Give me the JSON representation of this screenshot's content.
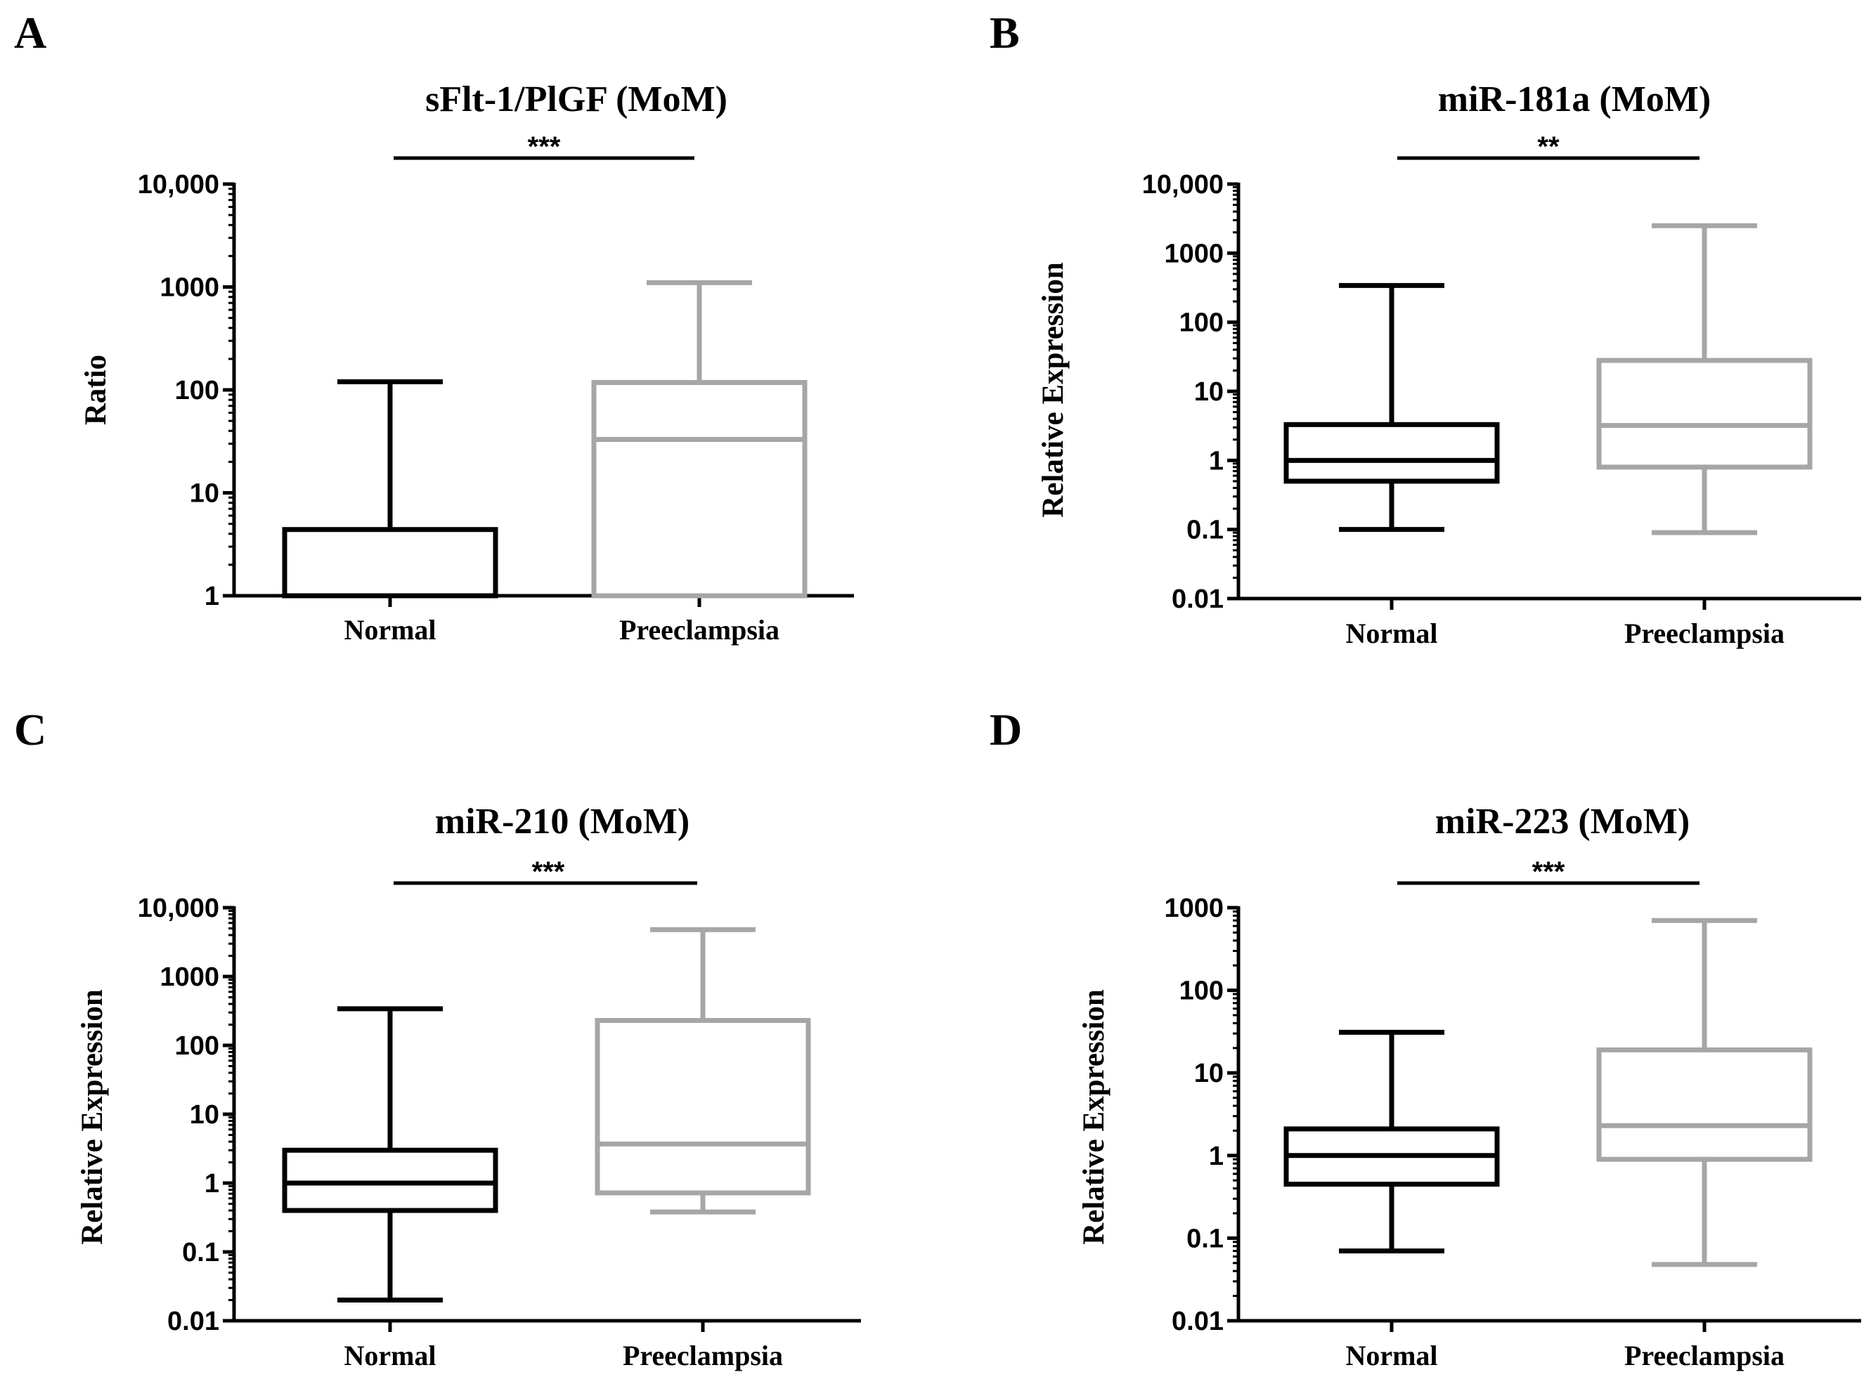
{
  "figure": {
    "panel_labels": [
      "A",
      "B",
      "C",
      "D"
    ]
  },
  "chart_data": [
    {
      "type": "boxplot",
      "panel": "A",
      "title": "sFlt-1/PlGF (MoM)",
      "ylabel": "Ratio",
      "xlabel": "",
      "yscale": "log",
      "ylim": [
        1,
        10000
      ],
      "yticks": [
        1,
        10,
        100,
        1000,
        10000
      ],
      "yticklabels": [
        "1",
        "10",
        "100",
        "1000",
        "10,000"
      ],
      "categories": [
        "Normal",
        "Preeclampsia"
      ],
      "significance": "***",
      "series": [
        {
          "name": "Normal",
          "color": "#000000",
          "min": 1,
          "q1": 1,
          "median": 1,
          "q3": 4.4,
          "max": 120
        },
        {
          "name": "Preeclampsia",
          "color": "#a6a6a6",
          "min": 1,
          "q1": 1,
          "median": 33,
          "q3": 118,
          "max": 1100
        }
      ]
    },
    {
      "type": "boxplot",
      "panel": "B",
      "title": "miR-181a (MoM)",
      "ylabel": "Relative Expression",
      "xlabel": "",
      "yscale": "log",
      "ylim": [
        0.01,
        10000
      ],
      "yticks": [
        0.01,
        0.1,
        1,
        10,
        100,
        1000,
        10000
      ],
      "yticklabels": [
        "0.01",
        "0.1",
        "1",
        "10",
        "100",
        "1000",
        "10,000"
      ],
      "categories": [
        "Normal",
        "Preeclampsia"
      ],
      "significance": "**",
      "series": [
        {
          "name": "Normal",
          "color": "#000000",
          "min": 0.1,
          "q1": 0.5,
          "median": 1.0,
          "q3": 3.3,
          "max": 340
        },
        {
          "name": "Preeclampsia",
          "color": "#a6a6a6",
          "min": 0.09,
          "q1": 0.8,
          "median": 3.2,
          "q3": 28,
          "max": 2500
        }
      ]
    },
    {
      "type": "boxplot",
      "panel": "C",
      "title": "miR-210 (MoM)",
      "ylabel": "Relative Expression",
      "xlabel": "",
      "yscale": "log",
      "ylim": [
        0.01,
        10000
      ],
      "yticks": [
        0.01,
        0.1,
        1,
        10,
        100,
        1000,
        10000
      ],
      "yticklabels": [
        "0.01",
        "0.1",
        "1",
        "10",
        "100",
        "1000",
        "10,000"
      ],
      "categories": [
        "Normal",
        "Preeclampsia"
      ],
      "significance": "***",
      "series": [
        {
          "name": "Normal",
          "color": "#000000",
          "min": 0.02,
          "q1": 0.4,
          "median": 1.0,
          "q3": 3.0,
          "max": 340
        },
        {
          "name": "Preeclampsia",
          "color": "#a6a6a6",
          "min": 0.38,
          "q1": 0.72,
          "median": 3.7,
          "q3": 230,
          "max": 4800
        }
      ]
    },
    {
      "type": "boxplot",
      "panel": "D",
      "title": "miR-223 (MoM)",
      "ylabel": "Relative Expression",
      "xlabel": "",
      "yscale": "log",
      "ylim": [
        0.01,
        1000
      ],
      "yticks": [
        0.01,
        0.1,
        1,
        10,
        100,
        1000
      ],
      "yticklabels": [
        "0.01",
        "0.1",
        "1",
        "10",
        "100",
        "1000"
      ],
      "categories": [
        "Normal",
        "Preeclampsia"
      ],
      "significance": "***",
      "series": [
        {
          "name": "Normal",
          "color": "#000000",
          "min": 0.07,
          "q1": 0.45,
          "median": 1.0,
          "q3": 2.1,
          "max": 31
        },
        {
          "name": "Preeclampsia",
          "color": "#a6a6a6",
          "min": 0.048,
          "q1": 0.9,
          "median": 2.3,
          "q3": 19,
          "max": 700
        }
      ]
    }
  ]
}
